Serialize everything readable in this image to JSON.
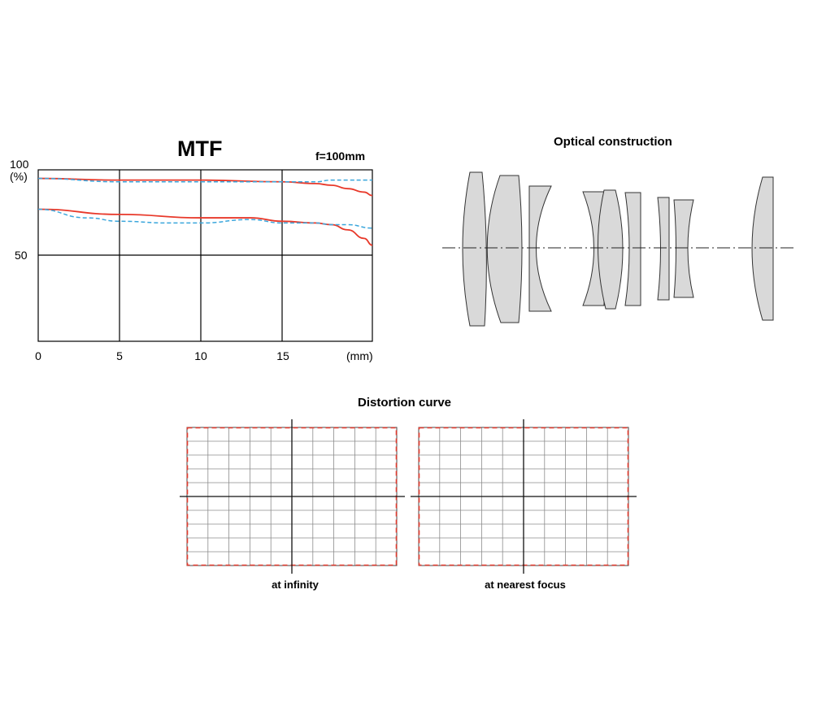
{
  "chart_data": [
    {
      "type": "line",
      "title": "MTF",
      "subtitle": "f=100mm",
      "ylabel": "(%)",
      "xlabel": "(mm)",
      "xlim": [
        0,
        20.5
      ],
      "ylim": [
        0,
        100
      ],
      "x_ticks": [
        "0",
        "5",
        "10",
        "15"
      ],
      "y_ticks": [
        "100",
        "50"
      ],
      "grid": true,
      "legend": "none",
      "colors": {
        "solid": "#e8392a",
        "dashed": "#3aa6dc"
      },
      "series": [
        {
          "style": "solid",
          "x": [
            0,
            5,
            10,
            15,
            17,
            18,
            19,
            20,
            20.5
          ],
          "y": [
            95,
            94,
            94,
            93,
            92,
            91,
            89,
            87,
            85
          ]
        },
        {
          "style": "dashed",
          "x": [
            0,
            5,
            10,
            15,
            17,
            18,
            19,
            20,
            20.5
          ],
          "y": [
            95,
            93,
            93,
            93,
            93,
            94,
            94,
            94,
            94
          ]
        },
        {
          "style": "solid",
          "x": [
            0,
            5,
            10,
            13,
            15,
            17,
            18,
            19,
            20,
            20.5
          ],
          "y": [
            77,
            74,
            72,
            72,
            70,
            69,
            68,
            65,
            60,
            56
          ]
        },
        {
          "style": "dashed",
          "x": [
            0,
            3,
            5,
            8,
            10,
            13,
            15,
            17,
            18,
            19,
            20.5
          ],
          "y": [
            77,
            72,
            70,
            69,
            69,
            71,
            69,
            69,
            68,
            68,
            66
          ]
        }
      ]
    }
  ],
  "optical": {
    "title": "Optical construction"
  },
  "distortion": {
    "title": "Distortion curve",
    "captions": [
      "at infinity",
      "at nearest focus"
    ]
  }
}
